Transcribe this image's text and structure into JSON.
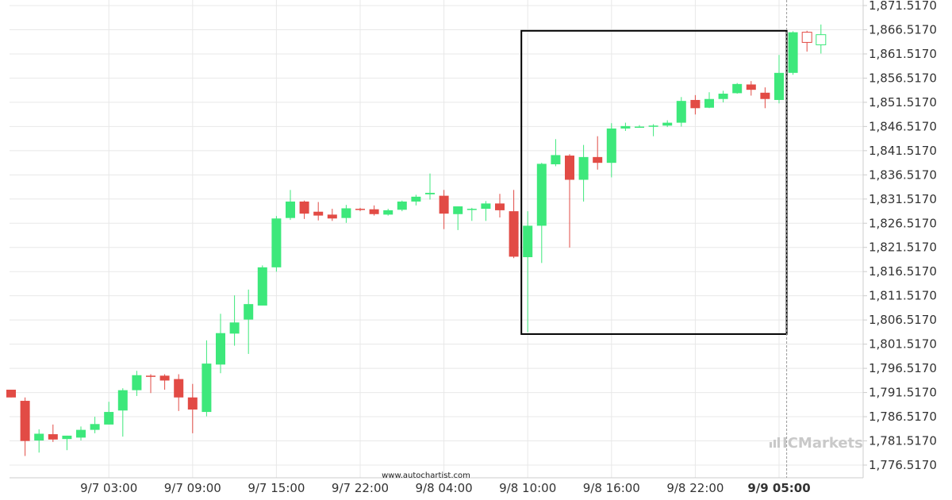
{
  "chart_data": {
    "type": "candlestick",
    "title": "",
    "xlabel": "",
    "ylabel": "",
    "ylim": [
      1771.517,
      1873.517
    ],
    "y_tick_values": [
      1871.517,
      1866.517,
      1861.517,
      1856.517,
      1851.517,
      1846.517,
      1841.517,
      1836.517,
      1831.517,
      1826.517,
      1821.517,
      1816.517,
      1811.517,
      1806.517,
      1801.517,
      1796.517,
      1791.517,
      1786.517,
      1781.517,
      1776.517
    ],
    "y_tick_labels": [
      "1,871.5170",
      "1,866.5170",
      "1,861.5170",
      "1,856.5170",
      "1,851.5170",
      "1,846.5170",
      "1,841.5170",
      "1,836.5170",
      "1,831.5170",
      "1,826.5170",
      "1,821.5170",
      "1,816.5170",
      "1,811.5170",
      "1,806.5170",
      "1,801.5170",
      "1,796.5170",
      "1,791.5170",
      "1,786.5170",
      "1,781.5170",
      "1,776.5170"
    ],
    "x_ticks": [
      {
        "index": 7,
        "label": "9/7 03:00",
        "bold": false
      },
      {
        "index": 13,
        "label": "9/7 09:00",
        "bold": false
      },
      {
        "index": 19,
        "label": "9/7 15:00",
        "bold": false
      },
      {
        "index": 25,
        "label": "9/7 22:00",
        "bold": false
      },
      {
        "index": 31,
        "label": "9/8 04:00",
        "bold": false
      },
      {
        "index": 37,
        "label": "9/8 10:00",
        "bold": false
      },
      {
        "index": 43,
        "label": "9/8 16:00",
        "bold": false
      },
      {
        "index": 49,
        "label": "9/8 22:00",
        "bold": false
      },
      {
        "index": 55,
        "label": "9/9 05:00",
        "bold": true
      }
    ],
    "candles": [
      {
        "o": 1792.1,
        "h": 1792.1,
        "l": 1790.5,
        "c": 1790.5
      },
      {
        "o": 1789.8,
        "h": 1790.5,
        "l": 1778.4,
        "c": 1781.5
      },
      {
        "o": 1781.6,
        "h": 1783.9,
        "l": 1779.1,
        "c": 1783.0
      },
      {
        "o": 1782.9,
        "h": 1784.9,
        "l": 1781.3,
        "c": 1781.8
      },
      {
        "o": 1781.9,
        "h": 1782.6,
        "l": 1779.6,
        "c": 1782.6
      },
      {
        "o": 1782.2,
        "h": 1784.5,
        "l": 1781.6,
        "c": 1783.8
      },
      {
        "o": 1783.8,
        "h": 1786.5,
        "l": 1783.1,
        "c": 1785.0
      },
      {
        "o": 1784.9,
        "h": 1789.6,
        "l": 1784.9,
        "c": 1787.5
      },
      {
        "o": 1787.8,
        "h": 1792.4,
        "l": 1782.4,
        "c": 1792.0
      },
      {
        "o": 1792.0,
        "h": 1796.0,
        "l": 1790.8,
        "c": 1795.1
      },
      {
        "o": 1795.0,
        "h": 1795.3,
        "l": 1791.4,
        "c": 1794.9
      },
      {
        "o": 1795.0,
        "h": 1795.3,
        "l": 1792.1,
        "c": 1794.0
      },
      {
        "o": 1794.3,
        "h": 1795.3,
        "l": 1787.7,
        "c": 1790.5
      },
      {
        "o": 1790.5,
        "h": 1793.3,
        "l": 1783.1,
        "c": 1788.0
      },
      {
        "o": 1787.5,
        "h": 1802.3,
        "l": 1786.6,
        "c": 1797.5
      },
      {
        "o": 1797.3,
        "h": 1807.8,
        "l": 1795.5,
        "c": 1803.8
      },
      {
        "o": 1803.7,
        "h": 1811.6,
        "l": 1801.2,
        "c": 1806.0
      },
      {
        "o": 1806.6,
        "h": 1812.8,
        "l": 1799.5,
        "c": 1809.8
      },
      {
        "o": 1809.5,
        "h": 1817.8,
        "l": 1809.5,
        "c": 1817.4
      },
      {
        "o": 1817.4,
        "h": 1828.0,
        "l": 1816.5,
        "c": 1827.5
      },
      {
        "o": 1827.6,
        "h": 1833.4,
        "l": 1827.2,
        "c": 1831.0
      },
      {
        "o": 1831.0,
        "h": 1831.2,
        "l": 1827.4,
        "c": 1828.5
      },
      {
        "o": 1828.9,
        "h": 1830.9,
        "l": 1827.1,
        "c": 1828.1
      },
      {
        "o": 1828.3,
        "h": 1829.5,
        "l": 1827.0,
        "c": 1827.5
      },
      {
        "o": 1827.6,
        "h": 1830.3,
        "l": 1826.6,
        "c": 1829.6
      },
      {
        "o": 1829.5,
        "h": 1829.7,
        "l": 1829.0,
        "c": 1829.4
      },
      {
        "o": 1829.4,
        "h": 1830.2,
        "l": 1828.1,
        "c": 1828.4
      },
      {
        "o": 1828.3,
        "h": 1829.5,
        "l": 1828.1,
        "c": 1829.2
      },
      {
        "o": 1829.3,
        "h": 1831.2,
        "l": 1829.0,
        "c": 1831.0
      },
      {
        "o": 1831.0,
        "h": 1832.4,
        "l": 1830.2,
        "c": 1832.0
      },
      {
        "o": 1832.5,
        "h": 1836.8,
        "l": 1831.4,
        "c": 1832.8
      },
      {
        "o": 1832.2,
        "h": 1833.4,
        "l": 1825.3,
        "c": 1828.5
      },
      {
        "o": 1828.4,
        "h": 1830.0,
        "l": 1825.1,
        "c": 1830.0
      },
      {
        "o": 1829.3,
        "h": 1829.7,
        "l": 1827.0,
        "c": 1829.5
      },
      {
        "o": 1829.5,
        "h": 1831.1,
        "l": 1827.0,
        "c": 1830.6
      },
      {
        "o": 1830.6,
        "h": 1832.6,
        "l": 1827.7,
        "c": 1829.2
      },
      {
        "o": 1829.0,
        "h": 1833.4,
        "l": 1819.3,
        "c": 1819.6
      },
      {
        "o": 1819.5,
        "h": 1829.0,
        "l": 1804.0,
        "c": 1826.0
      },
      {
        "o": 1826.0,
        "h": 1839.0,
        "l": 1818.3,
        "c": 1838.8
      },
      {
        "o": 1838.7,
        "h": 1843.9,
        "l": 1838.3,
        "c": 1840.6
      },
      {
        "o": 1840.5,
        "h": 1840.8,
        "l": 1821.5,
        "c": 1835.5
      },
      {
        "o": 1835.5,
        "h": 1842.7,
        "l": 1831.0,
        "c": 1840.2
      },
      {
        "o": 1840.2,
        "h": 1844.5,
        "l": 1837.6,
        "c": 1839.0
      },
      {
        "o": 1839.0,
        "h": 1847.2,
        "l": 1836.0,
        "c": 1846.1
      },
      {
        "o": 1846.1,
        "h": 1847.3,
        "l": 1845.6,
        "c": 1846.6
      },
      {
        "o": 1846.5,
        "h": 1846.8,
        "l": 1846.3,
        "c": 1846.5
      },
      {
        "o": 1846.5,
        "h": 1847.0,
        "l": 1844.5,
        "c": 1846.7
      },
      {
        "o": 1846.7,
        "h": 1847.8,
        "l": 1846.4,
        "c": 1847.3
      },
      {
        "o": 1847.3,
        "h": 1852.6,
        "l": 1846.5,
        "c": 1851.8
      },
      {
        "o": 1852.0,
        "h": 1853.0,
        "l": 1849.0,
        "c": 1850.3
      },
      {
        "o": 1850.4,
        "h": 1853.6,
        "l": 1850.3,
        "c": 1852.2
      },
      {
        "o": 1852.2,
        "h": 1853.9,
        "l": 1851.5,
        "c": 1853.3
      },
      {
        "o": 1853.4,
        "h": 1855.5,
        "l": 1853.3,
        "c": 1855.3
      },
      {
        "o": 1855.2,
        "h": 1855.9,
        "l": 1852.9,
        "c": 1854.1
      },
      {
        "o": 1853.5,
        "h": 1854.6,
        "l": 1850.3,
        "c": 1852.2
      },
      {
        "o": 1852.0,
        "h": 1861.3,
        "l": 1851.3,
        "c": 1857.6
      },
      {
        "o": 1857.6,
        "h": 1866.2,
        "l": 1857.2,
        "c": 1866.0
      },
      {
        "o": 1866.0,
        "h": 1866.3,
        "l": 1862.0,
        "c": 1863.9
      },
      {
        "o": 1863.4,
        "h": 1867.6,
        "l": 1861.6,
        "c": 1865.5
      }
    ],
    "highlight_box": {
      "start_index": 37,
      "end_index": 56,
      "price_low": 1803.6,
      "price_high": 1866.3
    },
    "current_index": 56,
    "colors": {
      "up": "#3de87b",
      "down": "#e24b45",
      "box": "#000000",
      "grid": "#e8e8e8",
      "axis": "#cccccc",
      "cursor": "#999999"
    },
    "grid": true
  },
  "watermark": {
    "text": "www.autochartist.com"
  },
  "branding": {
    "text": "ICMarkets"
  }
}
